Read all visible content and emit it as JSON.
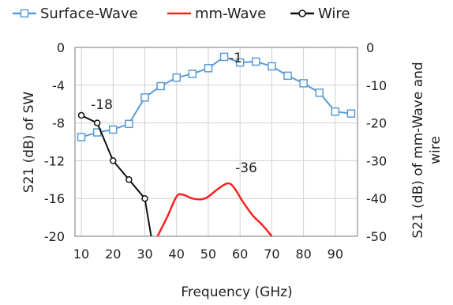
{
  "chart_data": {
    "type": "line",
    "xlabel": "Frequency (GHz)",
    "ylabel_left": "S21 (dB) of SW",
    "ylabel_right": "S21 (dB) of mm-Wave and wire",
    "xlim": [
      8,
      97
    ],
    "xticks": [
      10,
      20,
      30,
      40,
      50,
      60,
      70,
      80,
      90
    ],
    "ylim_left": [
      -20,
      0
    ],
    "yticks_left": [
      0,
      -4,
      -8,
      -12,
      -16,
      -20
    ],
    "ylim_right": [
      -50,
      0
    ],
    "yticks_right": [
      0,
      -10,
      -20,
      -30,
      -40,
      -50
    ],
    "grid": true,
    "legend_position": "top",
    "series": [
      {
        "name": "Surface-Wave",
        "axis": "left",
        "color": "#5b9bd5",
        "marker": "square",
        "x": [
          10,
          15,
          20,
          25,
          30,
          35,
          40,
          45,
          50,
          55,
          60,
          65,
          70,
          75,
          80,
          85,
          90,
          95
        ],
        "y": [
          -9.5,
          -9.0,
          -8.7,
          -8.1,
          -5.3,
          -4.1,
          -3.2,
          -2.8,
          -2.2,
          -1.0,
          -1.6,
          -1.5,
          -2.0,
          -3.0,
          -3.8,
          -4.8,
          -6.8,
          -7.0
        ]
      },
      {
        "name": "mm-Wave",
        "axis": "right",
        "color": "#ff2020",
        "marker": "none",
        "x": [
          34,
          37,
          40,
          42,
          45,
          48,
          50,
          53,
          56,
          58,
          61,
          64,
          67,
          70
        ],
        "y": [
          -50,
          -45,
          -39.5,
          -39,
          -40,
          -40.2,
          -39.5,
          -37.5,
          -36,
          -37,
          -41,
          -44.5,
          -47,
          -50
        ]
      },
      {
        "name": "Wire",
        "axis": "right",
        "color": "#111111",
        "marker": "circle",
        "x": [
          10,
          15,
          20,
          25,
          30,
          32
        ],
        "y": [
          -18,
          -20,
          -30,
          -35,
          -40,
          -50
        ]
      }
    ],
    "annotations": [
      {
        "text": "-1",
        "x": 56,
        "y": -1,
        "axis": "left"
      },
      {
        "text": "-18",
        "x": 14,
        "y": -18,
        "axis": "right"
      },
      {
        "text": "-36",
        "x": 58,
        "y": -36,
        "axis": "right"
      }
    ]
  }
}
